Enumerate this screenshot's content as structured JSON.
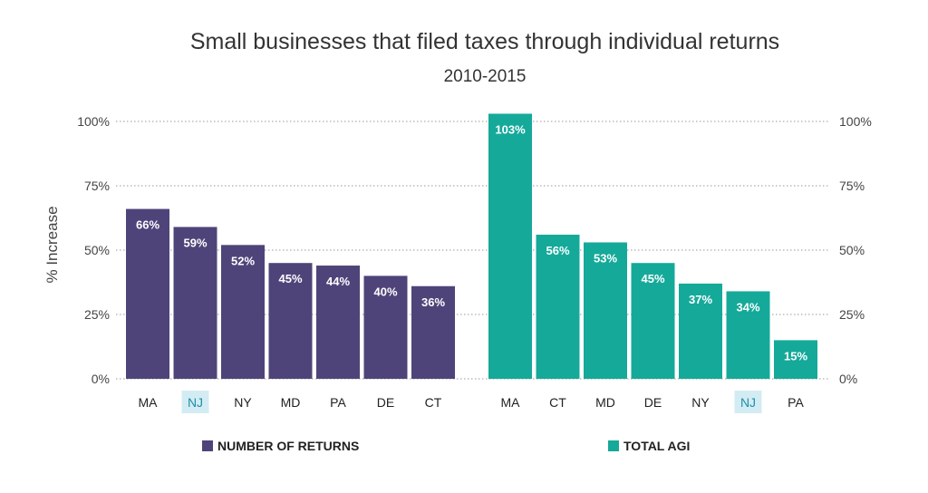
{
  "chart_data": {
    "type": "bar",
    "title": "Small businesses that filed taxes through individual returns",
    "subtitle": "2010-2015",
    "ylabel": "% Increase",
    "ylim": [
      0,
      100
    ],
    "yticks": [
      "0%",
      "25%",
      "50%",
      "75%",
      "100%"
    ],
    "yticks_right": [
      "0%",
      "25%",
      "50%",
      "75%",
      "100%"
    ],
    "grid": "horizontal dotted",
    "highlight_category": "NJ",
    "highlight_color": "#d3ecf3",
    "panels": [
      {
        "series_name": "NUMBER OF RETURNS",
        "color": "#4f4479",
        "categories": [
          "MA",
          "NJ",
          "NY",
          "MD",
          "PA",
          "DE",
          "CT"
        ],
        "values": [
          66,
          59,
          52,
          45,
          44,
          40,
          36
        ],
        "labels": [
          "66%",
          "59%",
          "52%",
          "45%",
          "44%",
          "40%",
          "36%"
        ]
      },
      {
        "series_name": "TOTAL AGI",
        "color": "#15a99a",
        "categories": [
          "MA",
          "CT",
          "MD",
          "DE",
          "NY",
          "NJ",
          "PA"
        ],
        "values": [
          103,
          56,
          53,
          45,
          37,
          34,
          15
        ],
        "labels": [
          "103%",
          "56%",
          "53%",
          "45%",
          "37%",
          "34%",
          "15%"
        ]
      }
    ],
    "legend_position": "bottom"
  }
}
